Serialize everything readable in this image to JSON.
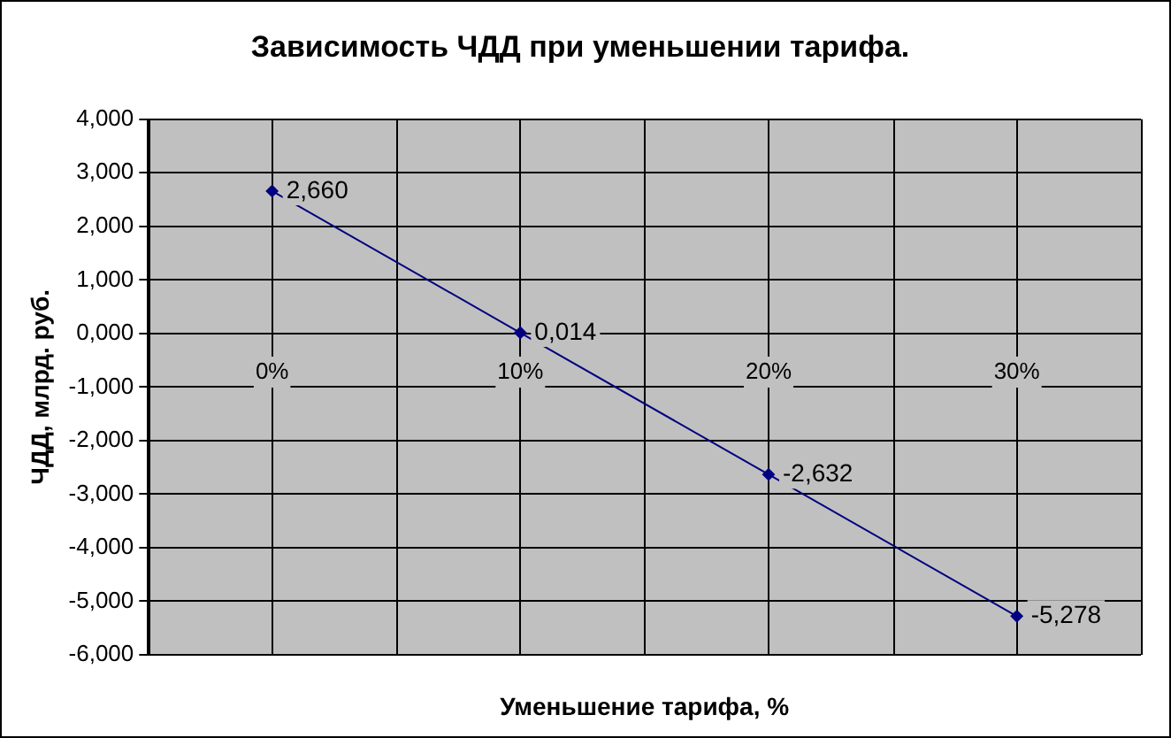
{
  "chart_data": {
    "type": "line",
    "title": "Зависимость ЧДД при уменьшении тарифа.",
    "xlabel": "Уменьшение тарифа, %",
    "ylabel": "ЧДД, млрд. руб.",
    "categories": [
      "0%",
      "10%",
      "20%",
      "30%"
    ],
    "series": [
      {
        "color": "#000080",
        "values": [
          2.66,
          0.014,
          -2.632,
          -5.278
        ],
        "value_labels": [
          "2,660",
          "0,014",
          "-2,632",
          "-5,278"
        ]
      }
    ],
    "ylim": [
      -6,
      4
    ],
    "yticks": [
      {
        "value": -6,
        "label": "-6,000"
      },
      {
        "value": -5,
        "label": "-5,000"
      },
      {
        "value": -4,
        "label": "-4,000"
      },
      {
        "value": -3,
        "label": "-3,000"
      },
      {
        "value": -2,
        "label": "-2,000"
      },
      {
        "value": -1,
        "label": "-1,000"
      },
      {
        "value": 0,
        "label": "0,000"
      },
      {
        "value": 1,
        "label": "1,000"
      },
      {
        "value": 2,
        "label": "2,000"
      },
      {
        "value": 3,
        "label": "3,000"
      },
      {
        "value": 4,
        "label": "4,000"
      }
    ],
    "grid": true,
    "legend": false,
    "marker": "diamond",
    "line_style": "solid"
  }
}
